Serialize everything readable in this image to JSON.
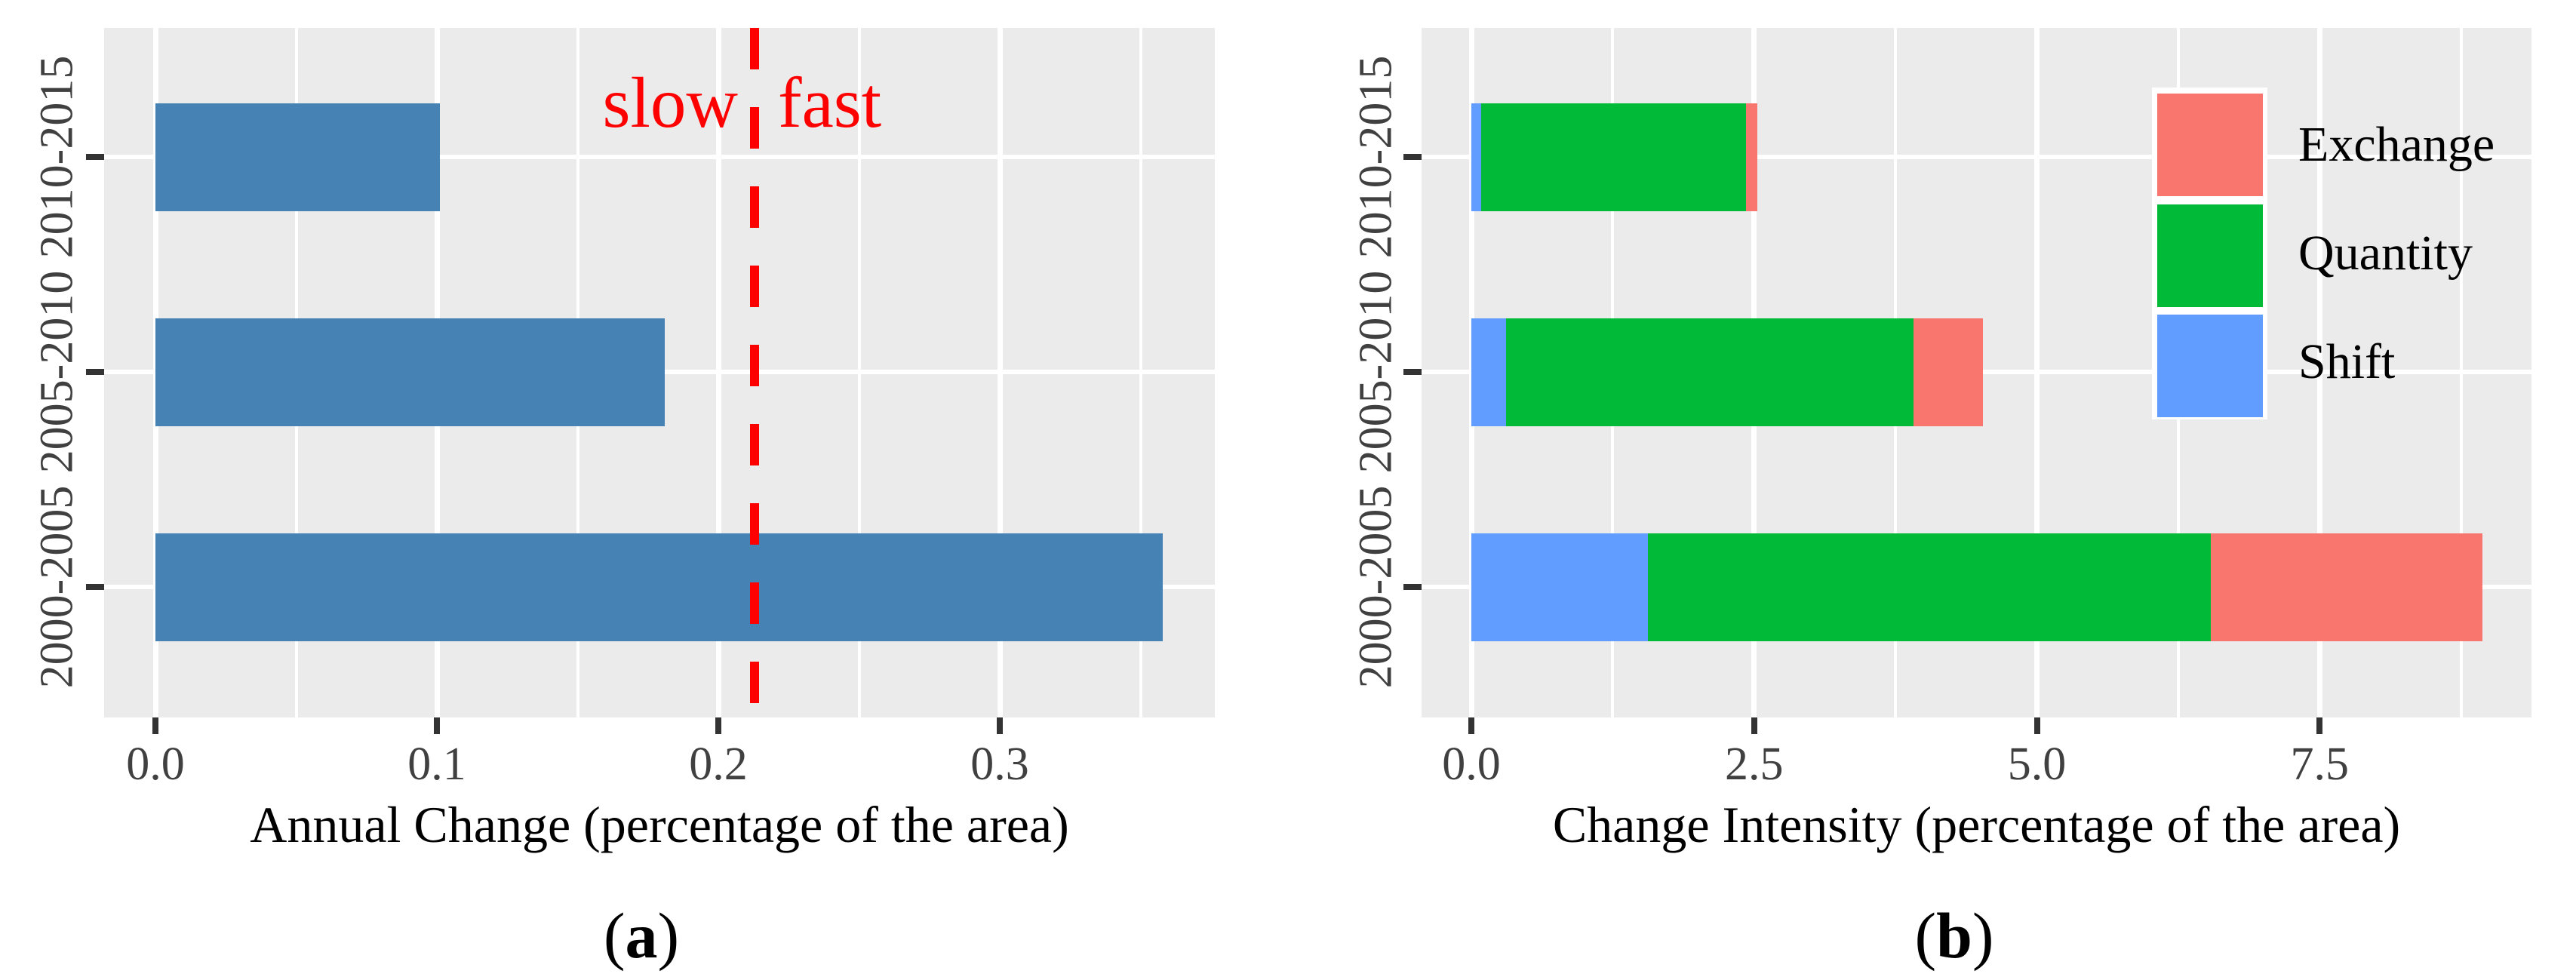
{
  "figure": {
    "background": "#FFFFFF",
    "panel_background": "#EBEBEB",
    "gridline_color": "#FFFFFF",
    "tick_color": "#333333",
    "captions": [
      {
        "open": "(",
        "letter": "a",
        "close": ")"
      },
      {
        "open": "(",
        "letter": "b",
        "close": ")"
      }
    ]
  },
  "chart_data": [
    {
      "type": "bar",
      "orientation": "horizontal",
      "title": "",
      "xlabel": "Annual Change (percentage of the area)",
      "ylabel": "",
      "categories": [
        "2000-2005",
        "2005-2010",
        "2010-2015"
      ],
      "values": [
        0.358,
        0.181,
        0.101
      ],
      "bar_color": "#4682B4",
      "x_ticks": [
        0,
        0.1,
        0.2,
        0.3
      ],
      "x_tick_labels": [
        "0.0",
        "0.1",
        "0.2",
        "0.3"
      ],
      "x_minor_ticks": [
        0.05,
        0.15,
        0.25,
        0.35
      ],
      "xlim": [
        -0.018,
        0.376
      ],
      "grid": true,
      "legend": null,
      "reference_line": {
        "value": 0.213,
        "style": "dashed",
        "color": "#FF0000",
        "label_left": "slow",
        "label_right": "fast"
      }
    },
    {
      "type": "stacked-bar",
      "orientation": "horizontal",
      "title": "",
      "xlabel": "Change Intensity (percentage of the area)",
      "ylabel": "",
      "categories": [
        "2000-2005",
        "2005-2010",
        "2010-2015"
      ],
      "series": [
        {
          "name": "Shift",
          "color": "#619CFF",
          "values": [
            1.56,
            0.31,
            0.09
          ]
        },
        {
          "name": "Quantity",
          "color": "#00BA38",
          "values": [
            4.98,
            3.6,
            2.34
          ]
        },
        {
          "name": "Exchange",
          "color": "#F8766D",
          "values": [
            2.4,
            0.61,
            0.1
          ]
        }
      ],
      "totals": [
        8.94,
        4.52,
        2.53
      ],
      "x_ticks": [
        0,
        2.5,
        5.0,
        7.5
      ],
      "x_tick_labels": [
        "0.0",
        "2.5",
        "5.0",
        "7.5"
      ],
      "x_minor_ticks": [
        1.25,
        3.75,
        6.25,
        8.75
      ],
      "xlim": [
        -0.45,
        9.4
      ],
      "grid": true,
      "legend": {
        "position": "top-right",
        "entries": [
          "Exchange",
          "Quantity",
          "Shift"
        ]
      }
    }
  ]
}
